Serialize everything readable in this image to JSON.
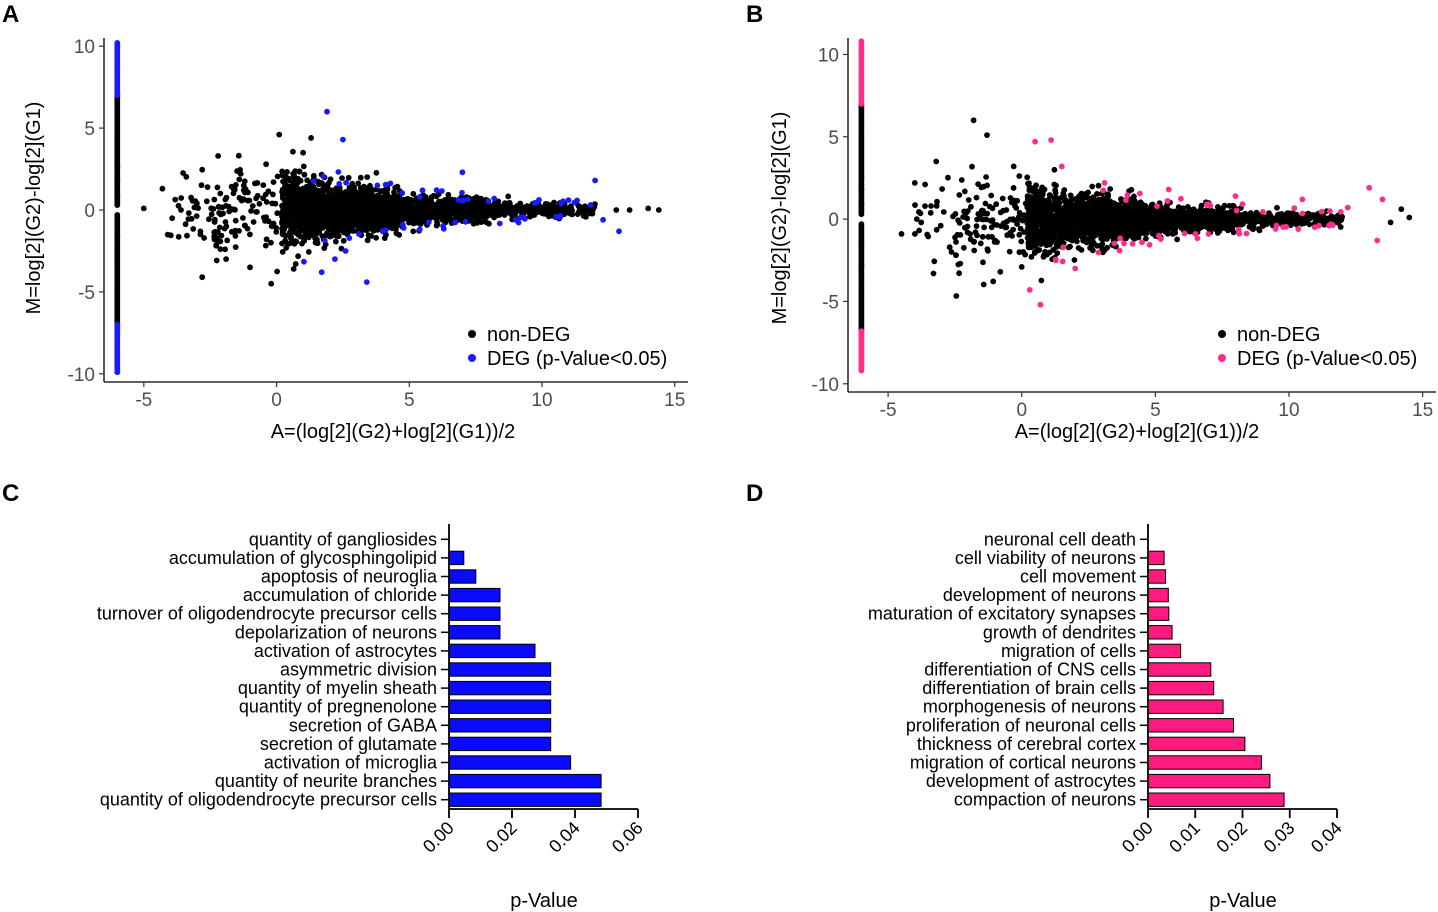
{
  "chart_data": [
    {
      "panel": "A",
      "type": "scatter",
      "xlabel": "A=(log[2](G2)+log[2](G1))/2",
      "ylabel": "M=log[2](G2)-log[2](G1)",
      "xlim": [
        -6.5,
        15.5
      ],
      "ylim": [
        -10.5,
        10.5
      ],
      "xticks": [
        -5,
        0,
        5,
        10,
        15
      ],
      "yticks": [
        -10,
        -5,
        0,
        5,
        10
      ],
      "xtick_labels": [
        "-5",
        "0",
        "5",
        "10",
        "15"
      ],
      "ytick_labels": [
        "-10",
        "-5",
        "0",
        "5",
        "10"
      ],
      "legend": [
        "non-DEG",
        "DEG (p-Value<0.05)"
      ],
      "legend_position": "bottom-right",
      "colors": {
        "nondeg": "#000000",
        "deg": "#1a1aff"
      },
      "seed": 7,
      "deg_at_min": {
        "high": [
          7,
          10.2
        ],
        "low": [
          -7,
          -9.9
        ]
      },
      "nondeg_at_min": {
        "high": [
          0.3,
          7
        ],
        "low": [
          -7,
          -0.3
        ]
      },
      "series": [
        {
          "name": "non-DEG",
          "points": [
            [
              -5.0,
              0.1
            ],
            [
              -4.3,
              1.3
            ],
            [
              -4.1,
              -1.5
            ],
            [
              -3.6,
              0.0
            ],
            [
              -2.6,
              1.4
            ],
            [
              -2.2,
              3.3
            ],
            [
              -2.8,
              -4.1
            ],
            [
              -1.9,
              -3.0
            ],
            [
              -1.0,
              -3.5
            ],
            [
              -0.2,
              -4.5
            ],
            [
              0.1,
              4.6
            ],
            [
              1.3,
              4.4
            ],
            [
              1.0,
              3.5
            ],
            [
              12.8,
              0.0
            ],
            [
              13.3,
              0.0
            ],
            [
              14.0,
              0.1
            ],
            [
              14.4,
              0.0
            ]
          ]
        },
        {
          "name": "DEG (p-Value<0.05)",
          "points": [
            [
              1.9,
              6.0
            ],
            [
              2.5,
              4.3
            ],
            [
              7.0,
              2.3
            ],
            [
              12.0,
              1.8
            ],
            [
              12.3,
              -0.6
            ],
            [
              12.9,
              -1.3
            ],
            [
              2.2,
              -3.0
            ],
            [
              1.7,
              -3.8
            ],
            [
              3.4,
              -4.4
            ],
            [
              4.0,
              -1.3
            ],
            [
              3.8,
              1.5
            ],
            [
              5.5,
              1.2
            ],
            [
              8.2,
              0.7
            ],
            [
              9.0,
              -0.6
            ],
            [
              11.0,
              0.6
            ],
            [
              2.6,
              -2.5
            ]
          ]
        }
      ]
    },
    {
      "panel": "B",
      "type": "scatter",
      "xlabel": "A=(log[2](G2)+log[2](G1))/2",
      "ylabel": "M=log[2](G2)-log[2](G1)",
      "xlim": [
        -6.5,
        15.5
      ],
      "ylim": [
        -10.5,
        11
      ],
      "xticks": [
        -5,
        0,
        5,
        10,
        15
      ],
      "yticks": [
        -10,
        -5,
        0,
        5,
        10
      ],
      "xtick_labels": [
        "-5",
        "0",
        "5",
        "10",
        "15"
      ],
      "ytick_labels": [
        "-10",
        "-5",
        "0",
        "5",
        "10"
      ],
      "legend": [
        "non-DEG",
        "DEG (p-Value<0.05)"
      ],
      "legend_position": "bottom-right",
      "colors": {
        "nondeg": "#000000",
        "deg": "#ff2d8a"
      },
      "seed": 19,
      "deg_at_min": {
        "high": [
          7,
          10.8
        ],
        "low": [
          -6.8,
          -9.2
        ]
      },
      "nondeg_at_min": {
        "high": [
          0.3,
          7
        ],
        "low": [
          -6.8,
          -0.3
        ]
      },
      "series": [
        {
          "name": "non-DEG",
          "points": [
            [
              -4.5,
              -0.9
            ],
            [
              -4.0,
              2.2
            ],
            [
              -3.2,
              3.5
            ],
            [
              -3.3,
              -3.3
            ],
            [
              -2.3,
              -2.7
            ],
            [
              -1.8,
              6.0
            ],
            [
              -1.3,
              5.1
            ],
            [
              -0.8,
              -3.2
            ],
            [
              -0.3,
              3.2
            ],
            [
              0.0,
              -2.9
            ],
            [
              14.2,
              0.6
            ],
            [
              14.5,
              0.1
            ],
            [
              13.8,
              -0.2
            ]
          ]
        },
        {
          "name": "DEG (p-Value<0.05)",
          "points": [
            [
              0.3,
              -4.3
            ],
            [
              0.7,
              -5.2
            ],
            [
              1.1,
              4.8
            ],
            [
              0.5,
              4.7
            ],
            [
              3.1,
              2.2
            ],
            [
              5.5,
              1.8
            ],
            [
              8.0,
              1.4
            ],
            [
              10.5,
              1.2
            ],
            [
              13.0,
              1.9
            ],
            [
              13.5,
              1.2
            ],
            [
              13.3,
              -1.3
            ],
            [
              12.2,
              0.7
            ],
            [
              2.0,
              -3.0
            ],
            [
              4.5,
              -1.4
            ],
            [
              6.5,
              -0.9
            ],
            [
              1.5,
              3.2
            ],
            [
              9.5,
              -0.6
            ],
            [
              7.0,
              0.9
            ],
            [
              11.5,
              -0.4
            ]
          ]
        }
      ]
    },
    {
      "panel": "C",
      "type": "bar",
      "orientation": "horizontal",
      "color": "#0a0aff",
      "xlabel": "p-Value",
      "xlim": [
        0,
        0.06
      ],
      "xticks": [
        0.0,
        0.02,
        0.04,
        0.06
      ],
      "xtick_labels": [
        "0.00",
        "0.02",
        "0.04",
        "0.06"
      ],
      "categories": [
        "quantity of gangliosides",
        "accumulation of glycosphingolipid",
        "apoptosis of neuroglia",
        "accumulation of chloride",
        "turnover of oligodendrocyte precursor cells",
        "depolarization of neurons",
        "activation of astrocytes",
        "asymmetric division",
        "quantity of myelin sheath",
        "quantity of pregnenolone",
        "secretion of GABA",
        "secretion of glutamate",
        "activation of microglia",
        "quantity of neurite branches",
        "quantity of oligodendrocyte precursor cells"
      ],
      "values": [
        0.0,
        0.0047,
        0.0085,
        0.0162,
        0.0162,
        0.0162,
        0.0273,
        0.0323,
        0.0323,
        0.0323,
        0.0323,
        0.0323,
        0.0386,
        0.0483,
        0.0483
      ]
    },
    {
      "panel": "D",
      "type": "bar",
      "orientation": "horizontal",
      "color": "#ff1a80",
      "xlabel": "p-Value",
      "xlim": [
        0,
        0.04
      ],
      "xticks": [
        0.0,
        0.01,
        0.02,
        0.03,
        0.04
      ],
      "xtick_labels": [
        "0.00",
        "0.01",
        "0.02",
        "0.03",
        "0.04"
      ],
      "categories": [
        "neuronal cell death",
        "cell viability of neurons",
        "cell movement",
        "development of neurons",
        "maturation of excitatory synapses",
        "growth of dendrites",
        "migration of cells",
        "differentiation of CNS cells",
        "differentiation of brain cells",
        "morphogenesis of neurons",
        "proliferation of neuronal cells",
        "thickness of cerebral cortex",
        "migration of cortical neurons",
        "development of astrocytes",
        "compaction of neurons"
      ],
      "values": [
        0.0,
        0.0034,
        0.0037,
        0.0043,
        0.0044,
        0.0051,
        0.0069,
        0.0133,
        0.0139,
        0.0159,
        0.0181,
        0.0205,
        0.024,
        0.0258,
        0.0288
      ]
    }
  ]
}
